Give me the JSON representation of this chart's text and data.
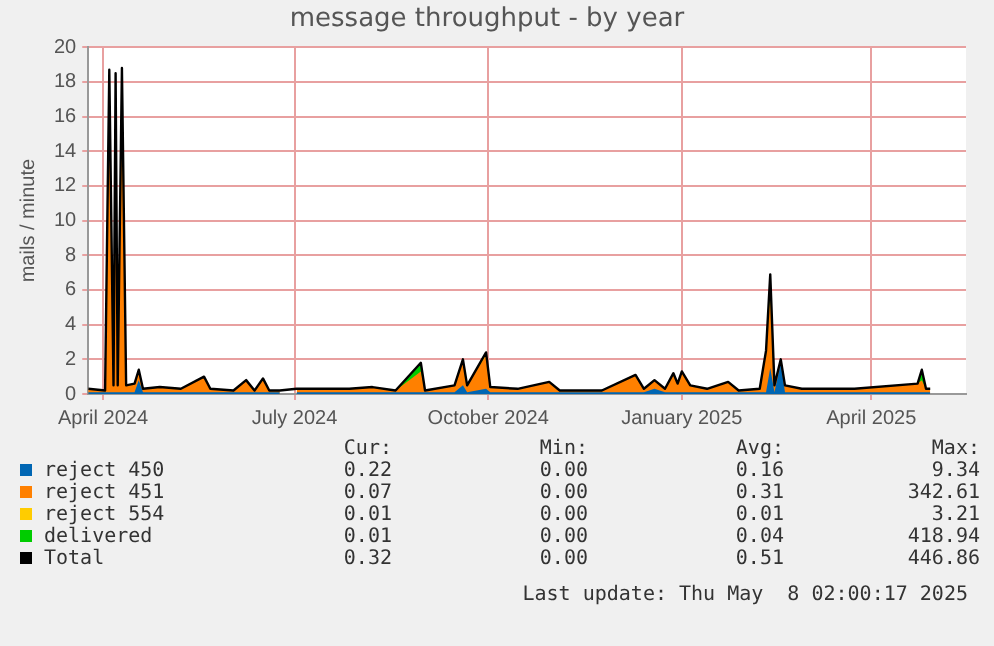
{
  "chart_data": {
    "type": "area",
    "title": "message throughput - by year",
    "ylabel": "mails / minute",
    "stacked": true,
    "grid": true,
    "legend": "bottom",
    "marker": "none",
    "x": [
      "2024-03-25",
      "2024-04-02",
      "2024-04-04",
      "2024-04-06",
      "2024-04-07",
      "2024-04-08",
      "2024-04-10",
      "2024-04-12",
      "2024-04-16",
      "2024-04-18",
      "2024-04-20",
      "2024-04-28",
      "2024-05-08",
      "2024-05-19",
      "2024-05-22",
      "2024-06-02",
      "2024-06-08",
      "2024-06-12",
      "2024-06-16",
      "2024-06-19",
      "2024-06-24",
      "2024-06-27",
      "2024-07-02",
      "2024-07-27",
      "2024-08-07",
      "2024-08-18",
      "2024-08-30",
      "2024-09-01",
      "2024-09-15",
      "2024-09-19",
      "2024-09-21",
      "2024-09-30",
      "2024-10-02",
      "2024-10-15",
      "2024-10-30",
      "2024-11-04",
      "2024-11-24",
      "2024-12-10",
      "2024-12-14",
      "2024-12-19",
      "2024-12-24",
      "2024-12-28",
      "2024-12-30",
      "2025-01-01",
      "2025-01-05",
      "2025-01-13",
      "2025-01-23",
      "2025-01-28",
      "2025-02-07",
      "2025-02-10",
      "2025-02-12",
      "2025-02-14",
      "2025-02-17",
      "2025-02-19",
      "2025-02-27",
      "2025-03-24",
      "2025-04-23",
      "2025-04-25",
      "2025-04-27",
      "2025-04-29"
    ],
    "xlim": [
      "2024-03-25",
      "2025-05-16"
    ],
    "xticks": [
      {
        "value": "2024-04-01",
        "label": "April 2024"
      },
      {
        "value": "2024-07-01",
        "label": "July 2024"
      },
      {
        "value": "2024-10-01",
        "label": "October 2024"
      },
      {
        "value": "2025-01-01",
        "label": "January 2025"
      },
      {
        "value": "2025-04-01",
        "label": "April 2025"
      }
    ],
    "ylim": [
      0,
      20
    ],
    "yticks": [
      0,
      2,
      4,
      6,
      8,
      10,
      12,
      14,
      16,
      18,
      20
    ],
    "series": [
      {
        "name": "Total",
        "type": "line",
        "color": "#000000",
        "values": [
          0.3,
          0.2,
          18.7,
          0.5,
          18.5,
          0.5,
          18.8,
          0.5,
          0.6,
          1.4,
          0.3,
          0.4,
          0.3,
          1.0,
          0.3,
          0.2,
          0.8,
          0.2,
          0.9,
          0.2,
          0.2,
          null,
          0.3,
          0.3,
          0.4,
          0.2,
          1.8,
          0.2,
          0.5,
          2.0,
          0.5,
          2.4,
          0.4,
          0.3,
          0.7,
          0.2,
          0.2,
          1.1,
          0.3,
          0.8,
          0.3,
          1.2,
          0.6,
          1.3,
          0.5,
          0.3,
          0.7,
          0.2,
          0.3,
          2.5,
          6.9,
          0.5,
          2.0,
          0.5,
          0.3,
          0.3,
          0.6,
          1.4,
          0.3,
          0.3
        ]
      },
      {
        "name": "reject 450",
        "color": "#0066b3",
        "values": [
          0.1,
          0.1,
          0.1,
          0.1,
          0.1,
          0.1,
          0.1,
          0.1,
          0.1,
          0.8,
          0.1,
          0.1,
          0.1,
          0.1,
          0.1,
          0.1,
          0.1,
          0.1,
          0.1,
          0.1,
          0.1,
          null,
          0.1,
          0.1,
          0.1,
          0.1,
          0.1,
          0.1,
          0.1,
          0.5,
          0.1,
          0.3,
          0.1,
          0.1,
          0.1,
          0.1,
          0.1,
          0.1,
          0.1,
          0.3,
          0.1,
          0.1,
          0.1,
          0.1,
          0.1,
          0.1,
          0.1,
          0.1,
          0.1,
          0.1,
          1.5,
          0.1,
          1.8,
          0.1,
          0.1,
          0.1,
          0.1,
          0.1,
          0.1,
          0.1
        ]
      },
      {
        "name": "reject 451",
        "color": "#ff8000",
        "values": [
          0.2,
          0.1,
          18.6,
          0.4,
          18.4,
          0.4,
          18.7,
          0.4,
          0.5,
          0.6,
          0.2,
          0.3,
          0.2,
          0.9,
          0.2,
          0.1,
          0.7,
          0.1,
          0.8,
          0.1,
          0.1,
          null,
          0.2,
          0.2,
          0.3,
          0.1,
          1.2,
          0.1,
          0.4,
          1.5,
          0.4,
          1.9,
          0.3,
          0.2,
          0.6,
          0.1,
          0.1,
          1.0,
          0.2,
          0.5,
          0.2,
          1.1,
          0.5,
          1.2,
          0.4,
          0.2,
          0.6,
          0.1,
          0.2,
          2.4,
          4.1,
          0.4,
          0.2,
          0.4,
          0.2,
          0.2,
          0.5,
          0.7,
          0.2,
          0.2
        ]
      },
      {
        "name": "reject 554",
        "color": "#ffcc00",
        "values": [
          null,
          null,
          null,
          null,
          null,
          null,
          null,
          null,
          null,
          null,
          null,
          null,
          null,
          null,
          null,
          null,
          null,
          null,
          null,
          null,
          null,
          null,
          null,
          null,
          null,
          null,
          null,
          null,
          null,
          null,
          0,
          0.2,
          0,
          null,
          null,
          null,
          null,
          null,
          null,
          null,
          null,
          null,
          null,
          null,
          null,
          null,
          null,
          null,
          null,
          0,
          0.3,
          0,
          null,
          null,
          null,
          null,
          null,
          null,
          null,
          null
        ]
      },
      {
        "name": "delivered",
        "color": "#00cc00",
        "values": [
          null,
          null,
          null,
          null,
          null,
          null,
          null,
          null,
          null,
          null,
          null,
          null,
          null,
          null,
          null,
          null,
          null,
          null,
          null,
          null,
          null,
          null,
          null,
          null,
          null,
          0,
          0.5,
          0,
          null,
          null,
          null,
          null,
          null,
          null,
          null,
          null,
          null,
          null,
          null,
          null,
          null,
          null,
          null,
          null,
          null,
          null,
          null,
          null,
          null,
          0,
          1.0,
          0,
          null,
          null,
          null,
          null,
          0,
          0.6,
          0,
          null
        ]
      }
    ],
    "annotations": [
      "Cur:",
      "Min:",
      "Avg:",
      "Max:",
      "0.32",
      "0.00",
      "0.51",
      "446.86",
      "0.22",
      "0.00",
      "0.16",
      "9.34",
      "0.07",
      "0.00",
      "0.31",
      "342.61",
      "0.01",
      "0.00",
      "0.01",
      "3.21",
      "0.01",
      "0.00",
      "0.04",
      "418.94",
      "Last update: Thu May  8 02:00:17 2025"
    ]
  }
}
